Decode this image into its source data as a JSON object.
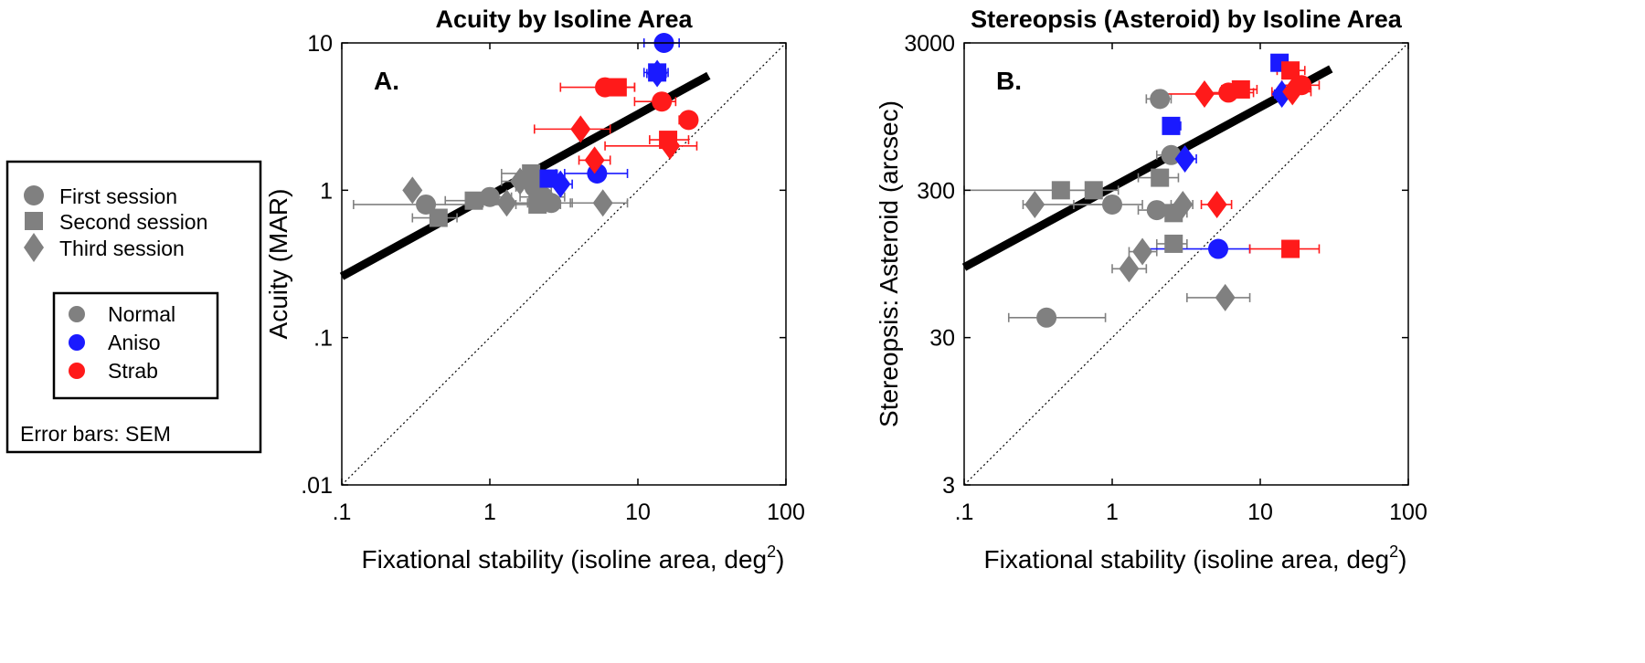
{
  "legend": {
    "sessions": [
      {
        "label": "First session",
        "marker": "circle"
      },
      {
        "label": "Second session",
        "marker": "square"
      },
      {
        "label": "Third session",
        "marker": "diamond"
      }
    ],
    "groups": [
      {
        "label": "Normal",
        "color": "#808080"
      },
      {
        "label": "Aniso",
        "color": "#1a1aff"
      },
      {
        "label": "Strab",
        "color": "#ff1a1a"
      }
    ],
    "error_note": "Error bars: SEM"
  },
  "colors": {
    "Normal": "#808080",
    "Aniso": "#1a1aff",
    "Strab": "#ff1a1a"
  },
  "chart_data": [
    {
      "type": "scatter",
      "title": "Acuity by Isoline Area",
      "panel_label": "A.",
      "xlabel": "Fixational stability (isoline area, deg",
      "xlabel_sup": "2",
      "xlabel_close": ")",
      "ylabel": "Acuity (MAR)",
      "xscale": "log",
      "yscale": "log",
      "xlim": [
        0.1,
        100
      ],
      "ylim": [
        0.01,
        10
      ],
      "xticks": [
        0.1,
        1,
        10,
        100
      ],
      "xtick_labels": [
        ".1",
        "1",
        "10",
        "100"
      ],
      "yticks": [
        0.01,
        0.1,
        1,
        10
      ],
      "ytick_labels": [
        ".01",
        ".1",
        "1",
        "10"
      ],
      "fit_line": {
        "x": [
          0.1,
          30
        ],
        "y": [
          0.26,
          6.0
        ]
      },
      "identity_line": {
        "x": [
          0.1,
          100
        ],
        "y": [
          0.01,
          10
        ]
      },
      "points": [
        {
          "group": "Normal",
          "session": "circle",
          "x": 0.37,
          "y": 0.8,
          "xerr": [
            0.12,
            1.4
          ]
        },
        {
          "group": "Normal",
          "session": "circle",
          "x": 2.0,
          "y": 1.05,
          "xerr": [
            1.5,
            2.6
          ]
        },
        {
          "group": "Normal",
          "session": "circle",
          "x": 2.3,
          "y": 0.9,
          "xerr": [
            1.6,
            3.2
          ]
        },
        {
          "group": "Normal",
          "session": "circle",
          "x": 2.6,
          "y": 0.82,
          "xerr": [
            1.8,
            3.6
          ]
        },
        {
          "group": "Normal",
          "session": "circle",
          "x": 1.0,
          "y": 0.9,
          "xerr": [
            0.7,
            1.4
          ]
        },
        {
          "group": "Normal",
          "session": "square",
          "x": 0.45,
          "y": 0.65,
          "xerr": [
            0.3,
            0.6
          ]
        },
        {
          "group": "Normal",
          "session": "square",
          "x": 0.78,
          "y": 0.85,
          "xerr": [
            0.5,
            1.1
          ]
        },
        {
          "group": "Normal",
          "session": "square",
          "x": 2.1,
          "y": 0.8,
          "xerr": [
            1.5,
            3.0
          ]
        },
        {
          "group": "Normal",
          "session": "square",
          "x": 1.9,
          "y": 1.3,
          "xerr": [
            1.2,
            2.8
          ]
        },
        {
          "group": "Normal",
          "session": "diamond",
          "x": 0.3,
          "y": 1.0,
          "xerr": [
            0.28,
            0.33
          ]
        },
        {
          "group": "Normal",
          "session": "diamond",
          "x": 1.3,
          "y": 0.82,
          "xerr": [
            0.9,
            1.8
          ]
        },
        {
          "group": "Normal",
          "session": "diamond",
          "x": 1.6,
          "y": 1.15,
          "xerr": [
            1.2,
            2.2
          ]
        },
        {
          "group": "Normal",
          "session": "diamond",
          "x": 5.8,
          "y": 0.82,
          "xerr": [
            3.5,
            8.5
          ]
        },
        {
          "group": "Aniso",
          "session": "circle",
          "x": 5.3,
          "y": 1.3,
          "xerr": [
            3.2,
            8.5
          ]
        },
        {
          "group": "Aniso",
          "session": "circle",
          "x": 15,
          "y": 10,
          "xerr": [
            11,
            19
          ]
        },
        {
          "group": "Aniso",
          "session": "square",
          "x": 2.5,
          "y": 1.2,
          "xerr": [
            2.0,
            3.2
          ]
        },
        {
          "group": "Aniso",
          "session": "square",
          "x": 13.5,
          "y": 6.3,
          "xerr": [
            11,
            16
          ]
        },
        {
          "group": "Aniso",
          "session": "diamond",
          "x": 3.0,
          "y": 1.1,
          "xerr": [
            2.4,
            3.6
          ]
        },
        {
          "group": "Aniso",
          "session": "diamond",
          "x": 13.5,
          "y": 6.2,
          "xerr": [
            11.5,
            15.5
          ]
        },
        {
          "group": "Strab",
          "session": "circle",
          "x": 6.0,
          "y": 5.0,
          "xerr": [
            3.0,
            9.5
          ]
        },
        {
          "group": "Strab",
          "session": "circle",
          "x": 14.5,
          "y": 4.0,
          "xerr": [
            9.5,
            18
          ]
        },
        {
          "group": "Strab",
          "session": "circle",
          "x": 22,
          "y": 3.0,
          "xerr": [
            19,
            25
          ]
        },
        {
          "group": "Strab",
          "session": "square",
          "x": 7.3,
          "y": 5.0,
          "xerr": [
            5.5,
            9.5
          ]
        },
        {
          "group": "Strab",
          "session": "square",
          "x": 16,
          "y": 2.2,
          "xerr": [
            12,
            22
          ]
        },
        {
          "group": "Strab",
          "session": "diamond",
          "x": 4.1,
          "y": 2.6,
          "xerr": [
            2.0,
            6.5
          ]
        },
        {
          "group": "Strab",
          "session": "diamond",
          "x": 5.1,
          "y": 1.6,
          "xerr": [
            4.0,
            6.5
          ]
        },
        {
          "group": "Strab",
          "session": "diamond",
          "x": 16.5,
          "y": 2.0,
          "xerr": [
            6.0,
            25
          ]
        }
      ]
    },
    {
      "type": "scatter",
      "title": "Stereopsis (Asteroid) by Isoline Area",
      "panel_label": "B.",
      "xlabel": "Fixational stability (isoline area, deg",
      "xlabel_sup": "2",
      "xlabel_close": ")",
      "ylabel": "Stereopsis: Asteroid (arcsec)",
      "xscale": "log",
      "yscale": "log",
      "xlim": [
        0.1,
        100
      ],
      "ylim": [
        3,
        3000
      ],
      "xticks": [
        0.1,
        1,
        10,
        100
      ],
      "xtick_labels": [
        ".1",
        "1",
        "10",
        "100"
      ],
      "yticks": [
        3,
        30,
        300,
        3000
      ],
      "ytick_labels": [
        "3",
        "30",
        "300",
        "3000"
      ],
      "fit_line": {
        "x": [
          0.1,
          30
        ],
        "y": [
          90,
          2000
        ]
      },
      "identity_line": {
        "x": [
          0.1,
          100
        ],
        "y": [
          3,
          3000
        ]
      },
      "points": [
        {
          "group": "Normal",
          "session": "circle",
          "x": 0.36,
          "y": 41,
          "xerr": [
            0.2,
            0.9
          ]
        },
        {
          "group": "Normal",
          "session": "circle",
          "x": 1.0,
          "y": 240,
          "xerr": [
            0.55,
            1.6
          ]
        },
        {
          "group": "Normal",
          "session": "circle",
          "x": 2.0,
          "y": 220,
          "xerr": [
            1.5,
            2.6
          ]
        },
        {
          "group": "Normal",
          "session": "circle",
          "x": 2.1,
          "y": 1250,
          "xerr": [
            1.7,
            2.5
          ]
        },
        {
          "group": "Normal",
          "session": "circle",
          "x": 2.5,
          "y": 520,
          "xerr": [
            2.0,
            3.0
          ]
        },
        {
          "group": "Normal",
          "session": "square",
          "x": 0.45,
          "y": 300,
          "xerr": [
            0.1,
            0.8
          ]
        },
        {
          "group": "Normal",
          "session": "square",
          "x": 0.75,
          "y": 300,
          "xerr": [
            0.5,
            1.1
          ]
        },
        {
          "group": "Normal",
          "session": "square",
          "x": 2.1,
          "y": 365,
          "xerr": [
            1.5,
            2.8
          ]
        },
        {
          "group": "Normal",
          "session": "square",
          "x": 2.6,
          "y": 210,
          "xerr": [
            2.0,
            3.2
          ]
        },
        {
          "group": "Normal",
          "session": "square",
          "x": 2.6,
          "y": 130,
          "xerr": [
            2.0,
            3.2
          ]
        },
        {
          "group": "Normal",
          "session": "diamond",
          "x": 0.3,
          "y": 240,
          "xerr": [
            0.25,
            0.9
          ]
        },
        {
          "group": "Normal",
          "session": "diamond",
          "x": 1.3,
          "y": 88,
          "xerr": [
            1.0,
            1.7
          ]
        },
        {
          "group": "Normal",
          "session": "diamond",
          "x": 1.6,
          "y": 115,
          "xerr": [
            1.3,
            2.0
          ]
        },
        {
          "group": "Normal",
          "session": "diamond",
          "x": 3.0,
          "y": 240,
          "xerr": [
            2.5,
            3.5
          ]
        },
        {
          "group": "Normal",
          "session": "diamond",
          "x": 5.8,
          "y": 56,
          "xerr": [
            3.2,
            8.5
          ]
        },
        {
          "group": "Aniso",
          "session": "circle",
          "x": 5.2,
          "y": 120,
          "xerr": [
            1.7,
            8.5
          ]
        },
        {
          "group": "Aniso",
          "session": "square",
          "x": 2.5,
          "y": 820,
          "xerr": [
            2.2,
            2.9
          ]
        },
        {
          "group": "Aniso",
          "session": "square",
          "x": 13.5,
          "y": 2200,
          "xerr": [
            12,
            15
          ]
        },
        {
          "group": "Aniso",
          "session": "diamond",
          "x": 3.1,
          "y": 490,
          "xerr": [
            2.6,
            3.7
          ]
        },
        {
          "group": "Aniso",
          "session": "diamond",
          "x": 14,
          "y": 1350,
          "xerr": [
            12.5,
            16
          ]
        },
        {
          "group": "Strab",
          "session": "circle",
          "x": 6.1,
          "y": 1380,
          "xerr": [
            4.0,
            9.0
          ]
        },
        {
          "group": "Strab",
          "session": "circle",
          "x": 19,
          "y": 1550,
          "xerr": [
            14,
            25
          ]
        },
        {
          "group": "Strab",
          "session": "square",
          "x": 7.4,
          "y": 1450,
          "xerr": [
            5.5,
            9.5
          ]
        },
        {
          "group": "Strab",
          "session": "square",
          "x": 16,
          "y": 1950,
          "xerr": [
            13,
            20
          ]
        },
        {
          "group": "Strab",
          "session": "square",
          "x": 16,
          "y": 120,
          "xerr": [
            8.5,
            25
          ]
        },
        {
          "group": "Strab",
          "session": "diamond",
          "x": 4.2,
          "y": 1350,
          "xerr": [
            2.0,
            6.0
          ]
        },
        {
          "group": "Strab",
          "session": "diamond",
          "x": 5.1,
          "y": 240,
          "xerr": [
            4.0,
            6.4
          ]
        },
        {
          "group": "Strab",
          "session": "diamond",
          "x": 16.5,
          "y": 1400,
          "xerr": [
            12,
            22
          ]
        }
      ]
    }
  ]
}
